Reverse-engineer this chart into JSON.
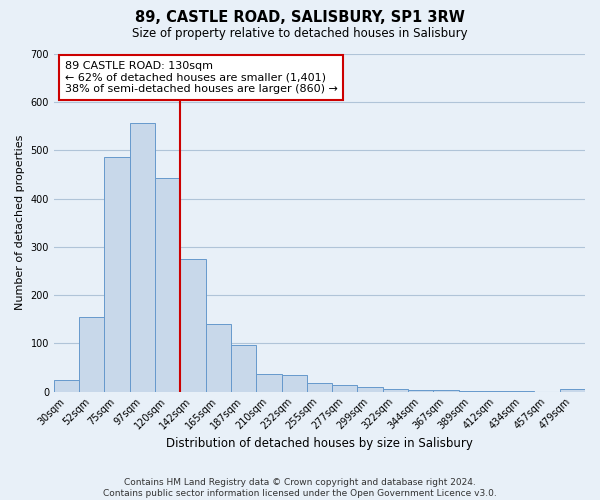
{
  "title": "89, CASTLE ROAD, SALISBURY, SP1 3RW",
  "subtitle": "Size of property relative to detached houses in Salisbury",
  "bar_labels": [
    "30sqm",
    "52sqm",
    "75sqm",
    "97sqm",
    "120sqm",
    "142sqm",
    "165sqm",
    "187sqm",
    "210sqm",
    "232sqm",
    "255sqm",
    "277sqm",
    "299sqm",
    "322sqm",
    "344sqm",
    "367sqm",
    "389sqm",
    "412sqm",
    "434sqm",
    "457sqm",
    "479sqm"
  ],
  "bar_values": [
    25,
    155,
    487,
    557,
    443,
    275,
    140,
    97,
    37,
    35,
    17,
    13,
    9,
    5,
    4,
    3,
    2,
    1,
    1,
    0,
    6
  ],
  "bar_color": "#c8d8ea",
  "bar_edge_color": "#6699cc",
  "ylim": [
    0,
    700
  ],
  "yticks": [
    0,
    100,
    200,
    300,
    400,
    500,
    600,
    700
  ],
  "xlabel": "Distribution of detached houses by size in Salisbury",
  "ylabel": "Number of detached properties",
  "vline_color": "#cc0000",
  "vline_x": 4.5,
  "annotation_title": "89 CASTLE ROAD: 130sqm",
  "annotation_line1": "← 62% of detached houses are smaller (1,401)",
  "annotation_line2": "38% of semi-detached houses are larger (860) →",
  "annotation_box_color": "#ffffff",
  "annotation_box_edge_color": "#cc0000",
  "footer_line1": "Contains HM Land Registry data © Crown copyright and database right 2024.",
  "footer_line2": "Contains public sector information licensed under the Open Government Licence v3.0.",
  "grid_color": "#b0c4d8",
  "bg_color": "#e8f0f8",
  "title_fontsize": 10.5,
  "subtitle_fontsize": 8.5,
  "xlabel_fontsize": 8.5,
  "ylabel_fontsize": 8,
  "tick_fontsize": 7,
  "footer_fontsize": 6.5,
  "ann_fontsize": 8
}
